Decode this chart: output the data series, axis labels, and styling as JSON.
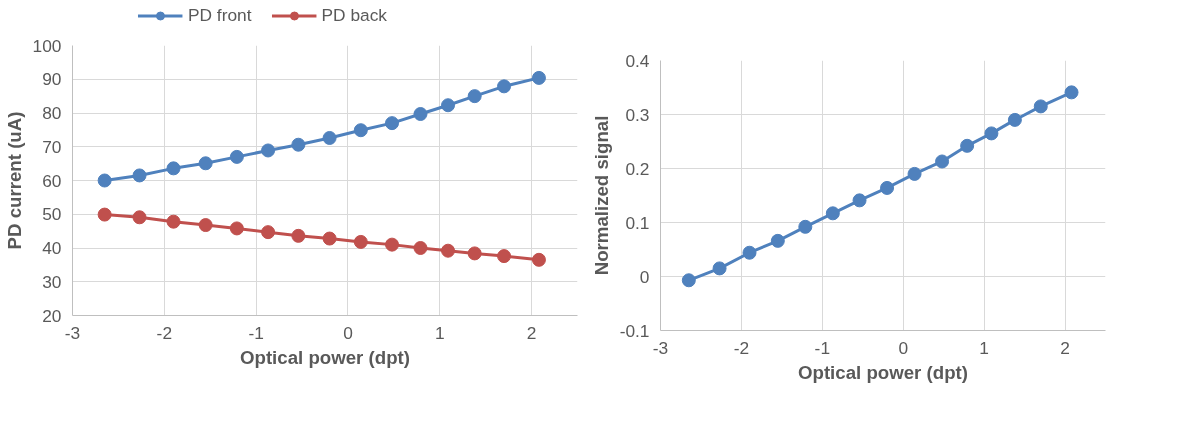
{
  "chart_data": [
    {
      "type": "line",
      "xlabel": "Optical power (dpt)",
      "ylabel": "PD current (uA)",
      "x": [
        -2.65,
        -2.27,
        -1.9,
        -1.55,
        -1.21,
        -0.87,
        -0.54,
        -0.2,
        0.14,
        0.48,
        0.79,
        1.09,
        1.38,
        1.7,
        2.08
      ],
      "series": [
        {
          "name": "PD front",
          "color": "#4f81bd",
          "values": [
            60.0,
            61.5,
            63.6,
            65.1,
            67.0,
            68.9,
            70.6,
            72.6,
            74.9,
            77.0,
            79.7,
            82.3,
            85.0,
            87.9,
            90.4
          ]
        },
        {
          "name": "PD back",
          "color": "#c0504d",
          "values": [
            49.9,
            49.1,
            47.8,
            46.8,
            45.8,
            44.7,
            43.6,
            42.8,
            41.8,
            41.0,
            40.0,
            39.2,
            38.4,
            37.6,
            36.5
          ]
        }
      ],
      "xlim": [
        -3,
        2.5
      ],
      "xticks": [
        -3,
        -2,
        -1,
        0,
        1,
        2
      ],
      "ylim": [
        20,
        100
      ],
      "yticks": [
        20,
        30,
        40,
        50,
        60,
        70,
        80,
        90,
        100
      ],
      "grid": true,
      "legend": "top",
      "marker": "circle",
      "line_style": "solid"
    },
    {
      "type": "line",
      "xlabel": "Optical power (dpt)",
      "ylabel": "Normalized signal",
      "x": [
        -2.65,
        -2.27,
        -1.9,
        -1.55,
        -1.21,
        -0.87,
        -0.54,
        -0.2,
        0.14,
        0.48,
        0.79,
        1.09,
        1.38,
        1.7,
        2.08
      ],
      "series": [
        {
          "color": "#4f81bd",
          "values": [
            -0.007,
            0.015,
            0.044,
            0.066,
            0.092,
            0.117,
            0.141,
            0.164,
            0.19,
            0.213,
            0.242,
            0.265,
            0.29,
            0.315,
            0.341
          ]
        }
      ],
      "xlim": [
        -3,
        2.5
      ],
      "xticks": [
        -3,
        -2,
        -1,
        0,
        1,
        2
      ],
      "ylim": [
        -0.1,
        0.4
      ],
      "yticks": [
        -0.1,
        0,
        0.1,
        0.2,
        0.3,
        0.4
      ],
      "grid": true,
      "legend": false,
      "marker": "circle",
      "line_style": "solid"
    }
  ]
}
